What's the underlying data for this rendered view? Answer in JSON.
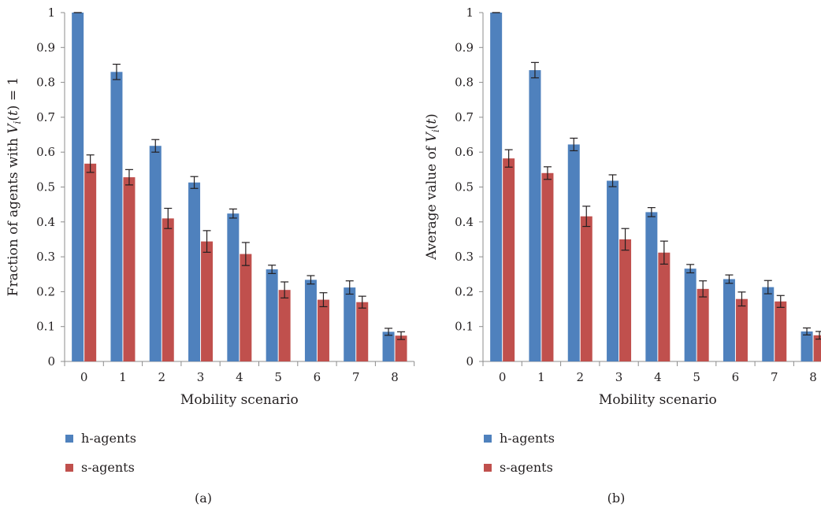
{
  "chart_data": [
    {
      "type": "bar",
      "panel_label": "(a)",
      "xlabel": "Mobility scenario",
      "ylabel": "Fraction of agents with V_i(t) = 1",
      "ylabel_parts": {
        "pre": "Fraction of agents with ",
        "var": "V",
        "sub": "i",
        "post": "(t) = 1"
      },
      "ylim": [
        0,
        1
      ],
      "yticks": [
        "0",
        "0.1",
        "0.2",
        "0.3",
        "0.4",
        "0.5",
        "0.6",
        "0.7",
        "0.8",
        "0.9",
        "1"
      ],
      "categories": [
        "0",
        "1",
        "2",
        "3",
        "4",
        "5",
        "6",
        "7",
        "8"
      ],
      "series": [
        {
          "name": "h-agents",
          "color": "#4f81bd",
          "values": [
            1.0,
            0.83,
            0.618,
            0.513,
            0.424,
            0.264,
            0.234,
            0.212,
            0.085
          ],
          "errors": [
            0.0,
            0.022,
            0.018,
            0.017,
            0.013,
            0.012,
            0.012,
            0.019,
            0.01
          ]
        },
        {
          "name": "s-agents",
          "color": "#c0504d",
          "values": [
            0.567,
            0.528,
            0.41,
            0.344,
            0.308,
            0.205,
            0.177,
            0.17,
            0.074
          ],
          "errors": [
            0.025,
            0.022,
            0.029,
            0.031,
            0.033,
            0.023,
            0.02,
            0.017,
            0.011
          ]
        }
      ],
      "grid": false,
      "legend": "bottom-left"
    },
    {
      "type": "bar",
      "panel_label": "(b)",
      "xlabel": "Mobility scenario",
      "ylabel": "Average value of V_i(t)",
      "ylabel_parts": {
        "pre": "Average value of ",
        "var": "V",
        "sub": "i",
        "post": "(t)"
      },
      "ylim": [
        0,
        1
      ],
      "yticks": [
        "0",
        "0.1",
        "0.2",
        "0.3",
        "0.4",
        "0.5",
        "0.6",
        "0.7",
        "0.8",
        "0.9",
        "1"
      ],
      "categories": [
        "0",
        "1",
        "2",
        "3",
        "4",
        "5",
        "6",
        "7",
        "8"
      ],
      "series": [
        {
          "name": "h-agents",
          "color": "#4f81bd",
          "values": [
            1.0,
            0.835,
            0.622,
            0.518,
            0.428,
            0.266,
            0.236,
            0.213,
            0.086
          ],
          "errors": [
            0.0,
            0.022,
            0.018,
            0.017,
            0.013,
            0.012,
            0.012,
            0.019,
            0.01
          ]
        },
        {
          "name": "s-agents",
          "color": "#c0504d",
          "values": [
            0.582,
            0.54,
            0.416,
            0.35,
            0.312,
            0.208,
            0.179,
            0.172,
            0.075
          ],
          "errors": [
            0.025,
            0.018,
            0.029,
            0.031,
            0.033,
            0.023,
            0.02,
            0.017,
            0.011
          ]
        }
      ],
      "grid": false,
      "legend": "bottom-left"
    }
  ]
}
